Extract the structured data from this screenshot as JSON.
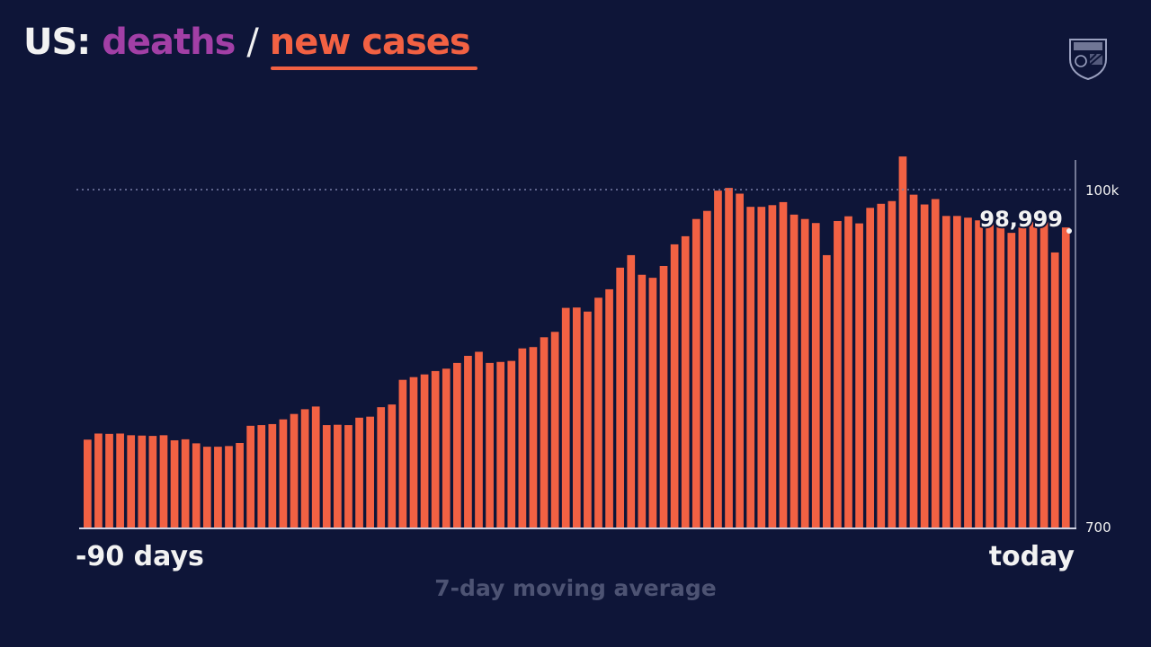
{
  "header": {
    "prefix": "US:",
    "deaths_label": "deaths",
    "separator": "/",
    "cases_label": "new cases"
  },
  "logo": {
    "icon": "university-shield-icon"
  },
  "axis": {
    "x_start_label": "-90 days",
    "x_end_label": "today",
    "subtitle": "7-day moving average"
  },
  "colors": {
    "background": "#0e1538",
    "bar": "#f26143",
    "deaths": "#a23fa6",
    "text": "#f2f2f2",
    "gridline": "#7a80a8"
  },
  "chart_data": {
    "type": "bar",
    "series": [
      {
        "name": "new cases",
        "values": [
          26000,
          27800,
          27700,
          27800,
          27300,
          27200,
          27100,
          27300,
          25800,
          26100,
          24900,
          23900,
          23900,
          24100,
          25000,
          30100,
          30300,
          30600,
          32000,
          33600,
          35000,
          35800,
          30300,
          30400,
          30300,
          32500,
          32800,
          35600,
          36400,
          43700,
          44500,
          45300,
          46300,
          47000,
          48700,
          50800,
          52000,
          48700,
          49000,
          49300,
          53000,
          53400,
          56300,
          57900,
          65000,
          65100,
          63900,
          68000,
          70500,
          76900,
          80600,
          74800,
          73900,
          77400,
          83800,
          86200,
          91300,
          93700,
          99700,
          100500,
          98800,
          94900,
          94900,
          95400,
          96300,
          92600,
          91300,
          90100,
          80600,
          90700,
          92100,
          90000,
          94600,
          95800,
          96600,
          109800,
          98500,
          95600,
          97200,
          92200,
          92200,
          91700,
          90900,
          90000,
          88900,
          87200,
          89400,
          90500,
          90400,
          81400,
          88800
        ],
        "callout": "98,999"
      }
    ],
    "y_tick_labels": [
      "100k",
      "700"
    ],
    "y_reference_line": 100000,
    "x_labels": [
      "-90 days",
      "today"
    ],
    "subtitle": "7-day moving average"
  }
}
